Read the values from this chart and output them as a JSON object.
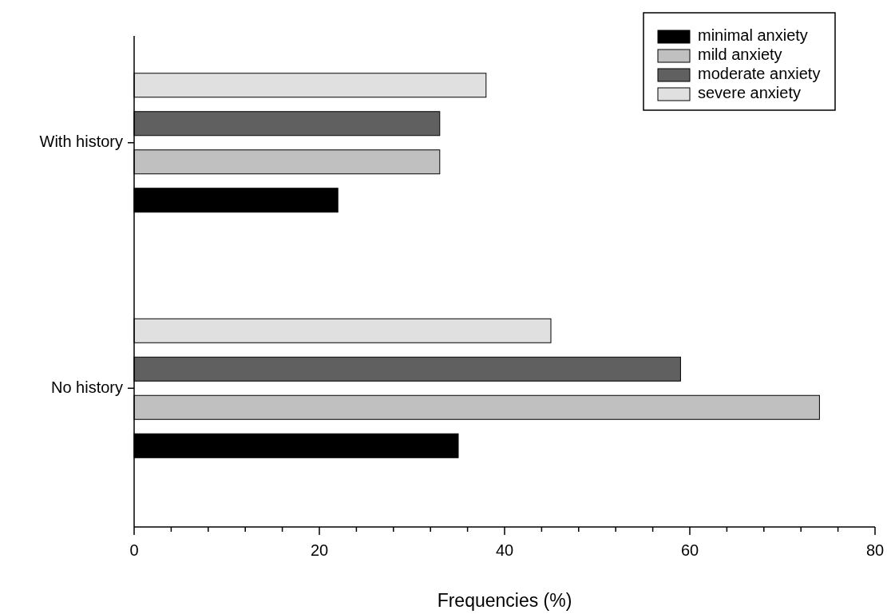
{
  "chart_data": {
    "type": "bar",
    "orientation": "horizontal",
    "xlabel": "Frequencies (%)",
    "categories": [
      "With history",
      "No history"
    ],
    "series": [
      {
        "name": "minimal anxiety",
        "color": "#000000",
        "values": [
          22,
          35
        ]
      },
      {
        "name": "mild anxiety",
        "color": "#c0c0c0",
        "values": [
          33,
          74
        ]
      },
      {
        "name": "moderate anxiety",
        "color": "#606060",
        "values": [
          33,
          59
        ]
      },
      {
        "name": "severe anxiety",
        "color": "#e0e0e0",
        "values": [
          38,
          45
        ]
      }
    ],
    "xlim": [
      0,
      80
    ],
    "xticks": [
      0,
      {
        "value": 4,
        "label": null
      },
      {
        "value": 8,
        "label": null
      },
      {
        "value": 12,
        "label": null
      },
      {
        "value": 16,
        "label": null
      },
      20,
      {
        "value": 24,
        "label": null
      },
      {
        "value": 28,
        "label": null
      },
      {
        "value": 32,
        "label": null
      },
      {
        "value": 36,
        "label": null
      },
      40,
      {
        "value": 44,
        "label": null
      },
      {
        "value": 48,
        "label": null
      },
      {
        "value": 52,
        "label": null
      },
      {
        "value": 56,
        "label": null
      },
      60,
      {
        "value": 64,
        "label": null
      },
      {
        "value": 68,
        "label": null
      },
      {
        "value": 72,
        "label": null
      },
      {
        "value": 76,
        "label": null
      },
      80
    ],
    "grid": false,
    "legend": "top right"
  }
}
